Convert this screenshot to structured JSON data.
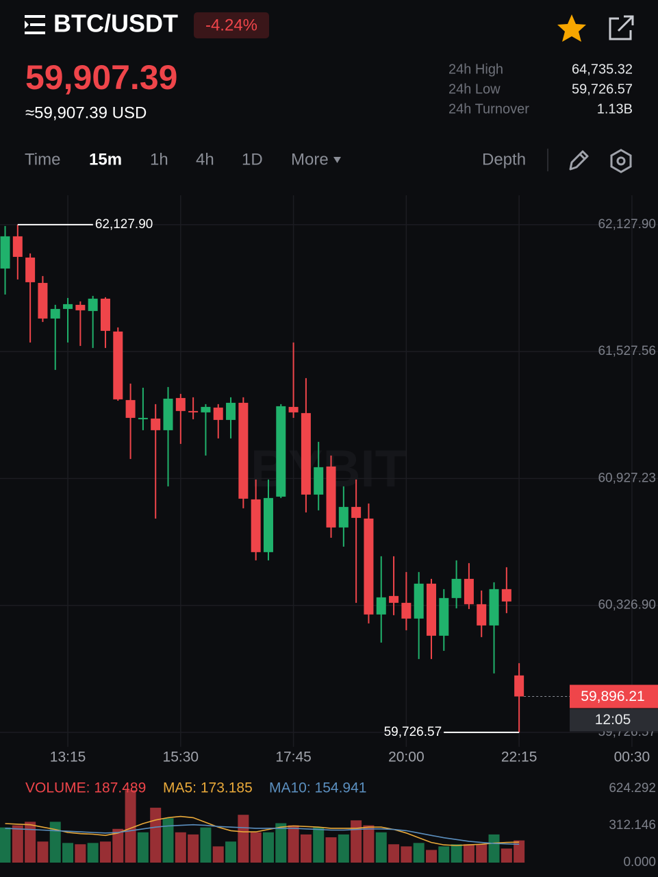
{
  "header": {
    "pair": "BTC/USDT",
    "change": "-4.24%",
    "price": "59,907.39",
    "price_usd": "≈59,907.39 USD"
  },
  "stats": [
    {
      "label": "24h High",
      "value": "64,735.32"
    },
    {
      "label": "24h Low",
      "value": "59,726.57"
    },
    {
      "label": "24h Turnover",
      "value": "1.13B"
    }
  ],
  "tabs": [
    "Time",
    "15m",
    "1h",
    "4h",
    "1D",
    "More"
  ],
  "depth": "Depth",
  "chart_data": {
    "type": "candlestick",
    "watermark": "BYBIT",
    "up_color": "#20b26c",
    "down_color": "#ef454a",
    "open": [
      61920.5,
      62072.8,
      61972.4,
      61852.4,
      61683.9,
      61729.3,
      61748.7,
      61719.6,
      61777.9,
      61622.4,
      61298.3,
      61207.6,
      61210.8,
      61155.7,
      61308.0,
      61246.5,
      61240.0,
      61262.7,
      61204.3,
      61285.3,
      60828.4,
      60578.9,
      60841.4,
      61265.9,
      61236.7,
      60851.1,
      60984.0,
      60695.6,
      60792.8,
      60737.7,
      60284.0,
      60371.5,
      60339.1,
      60264.6,
      60429.8,
      60183.5,
      60361.8,
      60452.5,
      60332.6,
      60232.1,
      60403.9,
      59995.6
    ],
    "high": [
      62121.4,
      62127.9,
      61991.8,
      61884.9,
      61748.7,
      61781.2,
      61765.0,
      61790.9,
      61784.4,
      61641.8,
      61376.1,
      61356.6,
      61278.9,
      61359.9,
      61327.5,
      61311.3,
      61278.9,
      61278.9,
      61311.3,
      61311.3,
      60922.4,
      60922.4,
      61278.9,
      61570.5,
      61402.0,
      61100.6,
      61035.8,
      60890.0,
      60922.4,
      60809.0,
      60559.4,
      60559.4,
      60484.9,
      60484.9,
      60452.5,
      60403.9,
      60540.0,
      60527.0,
      60397.4,
      60436.3,
      60507.6,
      60053.9
    ],
    "low": [
      61797.4,
      61868.7,
      61570.5,
      61667.7,
      61440.9,
      61570.5,
      61554.3,
      61544.6,
      61544.6,
      61295.1,
      61019.6,
      61155.7,
      60737.7,
      60890.0,
      61090.9,
      61207.6,
      61035.8,
      61116.8,
      61116.8,
      60786.3,
      60540.0,
      60540.0,
      60834.9,
      61214.0,
      60766.8,
      60776.6,
      60647.0,
      60604.8,
      60339.1,
      60241.9,
      60151.1,
      60280.8,
      60209.5,
      60073.4,
      60073.4,
      60112.2,
      60313.2,
      60309.9,
      60177.1,
      60005.3,
      60290.5,
      59726.57
    ],
    "close": [
      62072.8,
      61975.6,
      61855.7,
      61683.9,
      61729.3,
      61752.0,
      61722.8,
      61777.9,
      61625.6,
      61301.5,
      61214.0,
      61214.0,
      61155.7,
      61304.8,
      61246.5,
      61240.0,
      61265.9,
      61204.3,
      61285.3,
      60831.7,
      60578.9,
      60834.9,
      61269.1,
      61240.0,
      60851.1,
      60980.7,
      60695.6,
      60792.8,
      60740.9,
      60284.0,
      60365.0,
      60339.1,
      60264.6,
      60429.8,
      60183.5,
      60361.8,
      60452.5,
      60332.6,
      60232.1,
      60403.9,
      60345.6,
      59896.21
    ],
    "xlim": [
      -0.41,
      52.08
    ],
    "xticks": [
      {
        "value": 5,
        "label": "13:15"
      },
      {
        "value": 14,
        "label": "15:30"
      },
      {
        "value": 23,
        "label": "17:45"
      },
      {
        "value": 32,
        "label": "20:00"
      },
      {
        "value": 41,
        "label": "22:15"
      },
      {
        "value": 50,
        "label": "00:30"
      }
    ],
    "ylim": [
      59658,
      62267
    ],
    "yticks": [
      {
        "value": 62127.9,
        "label": "62,127.90"
      },
      {
        "value": 61527.56,
        "label": "61,527.56"
      },
      {
        "value": 60927.23,
        "label": "60,927.23"
      },
      {
        "value": 60326.9,
        "label": "60,326.90"
      },
      {
        "value": 59726.57,
        "label": "59,726.57"
      }
    ],
    "grid": true,
    "high_marker": {
      "value": 62127.9,
      "label": "62,127.90"
    },
    "low_marker": {
      "value": 59726.57,
      "label": "59,726.57"
    },
    "last_price": {
      "value": 59896.21,
      "label": "59,896.21",
      "countdown": "12:05"
    },
    "volume": {
      "label": "VOLUME: 187.489",
      "color": "#ef454a",
      "values": [
        297,
        315,
        345,
        178,
        345,
        166,
        155,
        166,
        178,
        285,
        612,
        256,
        464,
        375,
        256,
        238,
        297,
        137,
        178,
        404,
        256,
        256,
        333,
        315,
        238,
        297,
        214,
        238,
        357,
        315,
        256,
        155,
        137,
        166,
        107,
        137,
        155,
        155,
        155,
        238,
        119,
        187.489
      ]
    },
    "ma": [
      {
        "label": "MA5: 173.185",
        "color": "#e9a93a",
        "values": [
          330,
          325,
          320,
          300,
          280,
          255,
          245,
          240,
          230,
          250,
          290,
          330,
          360,
          380,
          390,
          380,
          340,
          300,
          270,
          260,
          260,
          280,
          300,
          310,
          305,
          300,
          290,
          290,
          290,
          300,
          300,
          280,
          250,
          210,
          170,
          150,
          145,
          150,
          155,
          165,
          170,
          173.185
        ]
      },
      {
        "label": "MA10: 154.941",
        "color": "#5b8fbf",
        "values": [
          290,
          285,
          280,
          275,
          270,
          265,
          260,
          255,
          250,
          255,
          270,
          285,
          300,
          310,
          315,
          320,
          315,
          305,
          300,
          295,
          290,
          290,
          290,
          290,
          285,
          280,
          275,
          275,
          280,
          285,
          285,
          280,
          270,
          250,
          230,
          210,
          195,
          180,
          170,
          162,
          158,
          154.941
        ]
      }
    ],
    "vlim": [
      0,
      660
    ],
    "vticks": [
      624.292,
      312.146,
      {
        "value": 0,
        "label": "0.000"
      }
    ]
  }
}
